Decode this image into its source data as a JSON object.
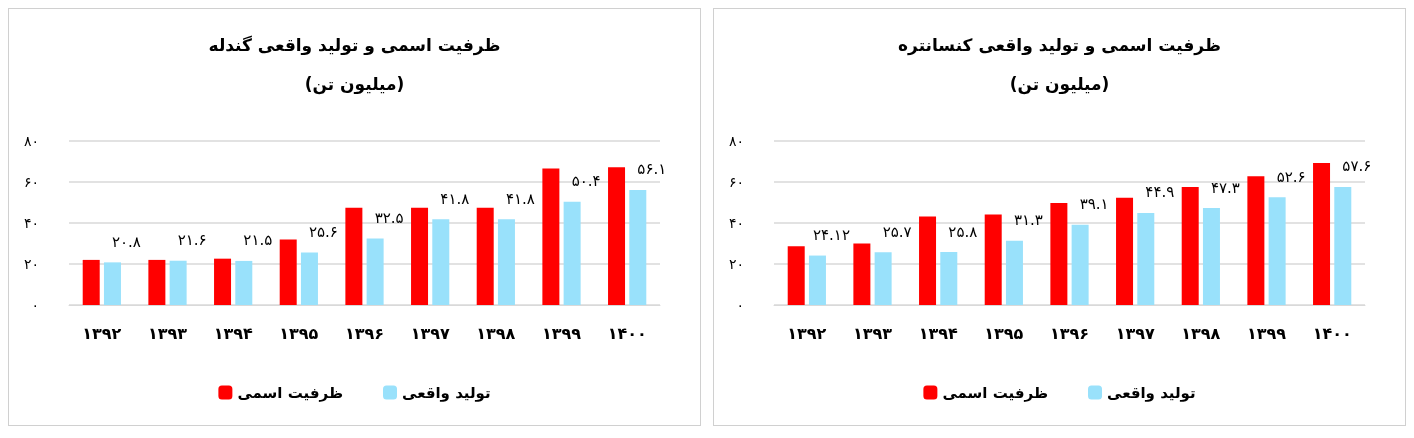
{
  "chart_data": [
    {
      "type": "bar",
      "title": "ظرفیت اسمی و تولید واقعی گندله",
      "subtitle": "(میلیون تن)",
      "categories": [
        "۱۳۹۲",
        "۱۳۹۳",
        "۱۳۹۴",
        "۱۳۹۵",
        "۱۳۹۶",
        "۱۳۹۷",
        "۱۳۹۸",
        "۱۳۹۹",
        "۱۴۰۰"
      ],
      "series": [
        {
          "name": "ظرفیت اسمی",
          "color": "#ff0000",
          "values": [
            22.0,
            22.0,
            22.6,
            32.0,
            47.5,
            47.5,
            47.5,
            66.6,
            67.2
          ]
        },
        {
          "name": "تولید واقعی",
          "color": "#99e1fb",
          "values": [
            20.8,
            21.6,
            21.5,
            25.6,
            32.5,
            41.8,
            41.8,
            50.4,
            56.1
          ],
          "value_labels": [
            "۲۰.۸",
            "۲۱.۶",
            "۲۱.۵",
            "۲۵.۶",
            "۳۲.۵",
            "۴۱.۸",
            "۴۱.۸",
            "۵۰.۴",
            "۵۶.۱"
          ]
        }
      ],
      "ylim": [
        0,
        80
      ],
      "yticks": [
        {
          "value": 0,
          "label": "۰"
        },
        {
          "value": 20,
          "label": "۲۰"
        },
        {
          "value": 40,
          "label": "۴۰"
        },
        {
          "value": 60,
          "label": "۶۰"
        },
        {
          "value": 80,
          "label": "۸۰"
        }
      ],
      "grid": "y",
      "legend": "bottom"
    },
    {
      "type": "bar",
      "title": "ظرفیت اسمی و تولید واقعی کنسانتره",
      "subtitle": "(میلیون تن)",
      "categories": [
        "۱۳۹۲",
        "۱۳۹۳",
        "۱۳۹۴",
        "۱۳۹۵",
        "۱۳۹۶",
        "۱۳۹۷",
        "۱۳۹۸",
        "۱۳۹۹",
        "۱۴۰۰"
      ],
      "series": [
        {
          "name": "ظرفیت اسمی",
          "color": "#ff0000",
          "values": [
            28.6,
            30.0,
            43.2,
            44.2,
            49.8,
            52.3,
            57.6,
            62.8,
            69.3
          ]
        },
        {
          "name": "تولید واقعی",
          "color": "#99e1fb",
          "values": [
            24.12,
            25.7,
            25.8,
            31.3,
            39.1,
            44.9,
            47.3,
            52.6,
            57.6
          ],
          "value_labels": [
            "۲۴.۱۲",
            "۲۵.۷",
            "۲۵.۸",
            "۳۱.۳",
            "۳۹.۱",
            "۴۴.۹",
            "۴۷.۳",
            "۵۲.۶",
            "۵۷.۶"
          ]
        }
      ],
      "ylim": [
        0,
        80
      ],
      "yticks": [
        {
          "value": 0,
          "label": "۰"
        },
        {
          "value": 20,
          "label": "۲۰"
        },
        {
          "value": 40,
          "label": "۴۰"
        },
        {
          "value": 60,
          "label": "۶۰"
        },
        {
          "value": 80,
          "label": "۸۰"
        }
      ],
      "grid": "y",
      "legend": "bottom"
    }
  ]
}
